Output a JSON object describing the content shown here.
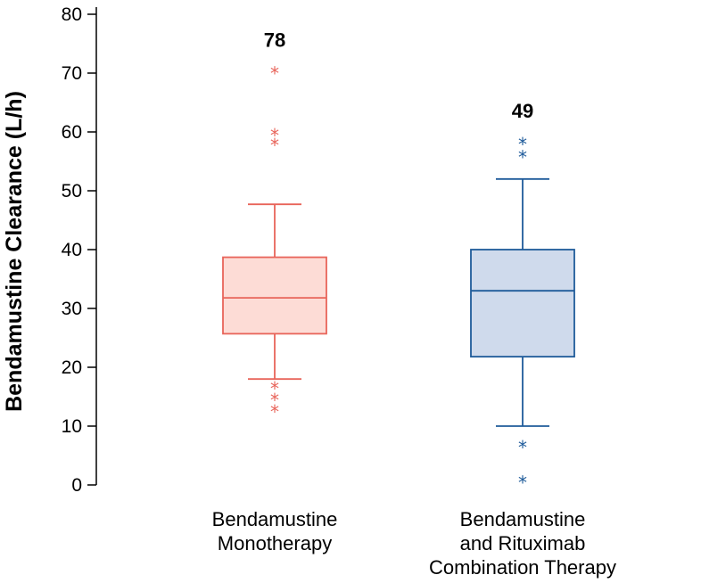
{
  "chart_data": {
    "type": "box",
    "ylabel": "Bendamustine Clearance (L/h)",
    "ylim": [
      0,
      80
    ],
    "yticks": [
      0,
      10,
      20,
      30,
      40,
      50,
      60,
      70,
      80
    ],
    "grid": false,
    "legend": "none",
    "groups": [
      {
        "label_lines": [
          "Bendamustine",
          "Monotherapy"
        ],
        "n_label": "78",
        "color": "#e8645a",
        "fill": "#fddcd6",
        "whisker_low": 18,
        "q1": 25.7,
        "median": 31.8,
        "q3": 38.7,
        "whisker_high": 47.7,
        "outliers": [
          70.5,
          60,
          58.3,
          17,
          15,
          13
        ]
      },
      {
        "label_lines": [
          "Bendamustine",
          "and Rituximab",
          "Combination Therapy"
        ],
        "n_label": "49",
        "color": "#1f5b9a",
        "fill": "#cfdaec",
        "whisker_low": 10,
        "q1": 21.8,
        "median": 33,
        "q3": 40,
        "whisker_high": 52,
        "outliers": [
          58.5,
          56.3,
          7,
          1
        ]
      }
    ]
  }
}
